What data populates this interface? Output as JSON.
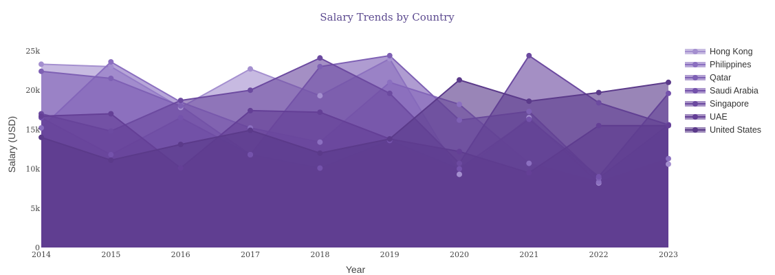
{
  "chart_data": {
    "type": "area",
    "title": "Salary Trends by Country",
    "xlabel": "Year",
    "ylabel": "Salary (USD)",
    "x": [
      "2014",
      "2015",
      "2016",
      "2017",
      "2018",
      "2019",
      "2020",
      "2021",
      "2022",
      "2023"
    ],
    "ylim": [
      0,
      25000
    ],
    "yticks": [
      0,
      5000,
      10000,
      15000,
      20000,
      25000
    ],
    "ytick_labels": [
      "0",
      "5k",
      "10k",
      "15k",
      "20k",
      "25k"
    ],
    "grid": false,
    "legend_position": "right",
    "series": [
      {
        "name": "Hong Kong",
        "color": "#a48fcf",
        "values": [
          23300,
          23000,
          17800,
          22700,
          19300,
          24000,
          9300,
          16500,
          8200,
          10600
        ]
      },
      {
        "name": "Philippines",
        "color": "#8b6fc0",
        "values": [
          15200,
          23600,
          18500,
          15200,
          13400,
          21000,
          18200,
          10700,
          8300,
          11300
        ]
      },
      {
        "name": "Qatar",
        "color": "#7e60b4",
        "values": [
          22400,
          21500,
          18000,
          11800,
          23000,
          24400,
          16200,
          17300,
          8800,
          15600
        ]
      },
      {
        "name": "Saudi Arabia",
        "color": "#7452ab",
        "values": [
          16500,
          11800,
          16500,
          11800,
          10100,
          13600,
          10000,
          16300,
          9000,
          19600
        ]
      },
      {
        "name": "Singapore",
        "color": "#6c4aa0",
        "values": [
          17000,
          14800,
          18700,
          20000,
          24100,
          19600,
          10700,
          24400,
          18400,
          15600
        ]
      },
      {
        "name": "UAE",
        "color": "#643f96",
        "values": [
          16700,
          17000,
          10100,
          17400,
          17200,
          13800,
          12200,
          9500,
          15500,
          15500
        ]
      },
      {
        "name": "United States",
        "color": "#5b3a8a",
        "values": [
          14000,
          11100,
          13100,
          14900,
          12000,
          13800,
          21300,
          18600,
          19700,
          21000
        ]
      }
    ]
  }
}
